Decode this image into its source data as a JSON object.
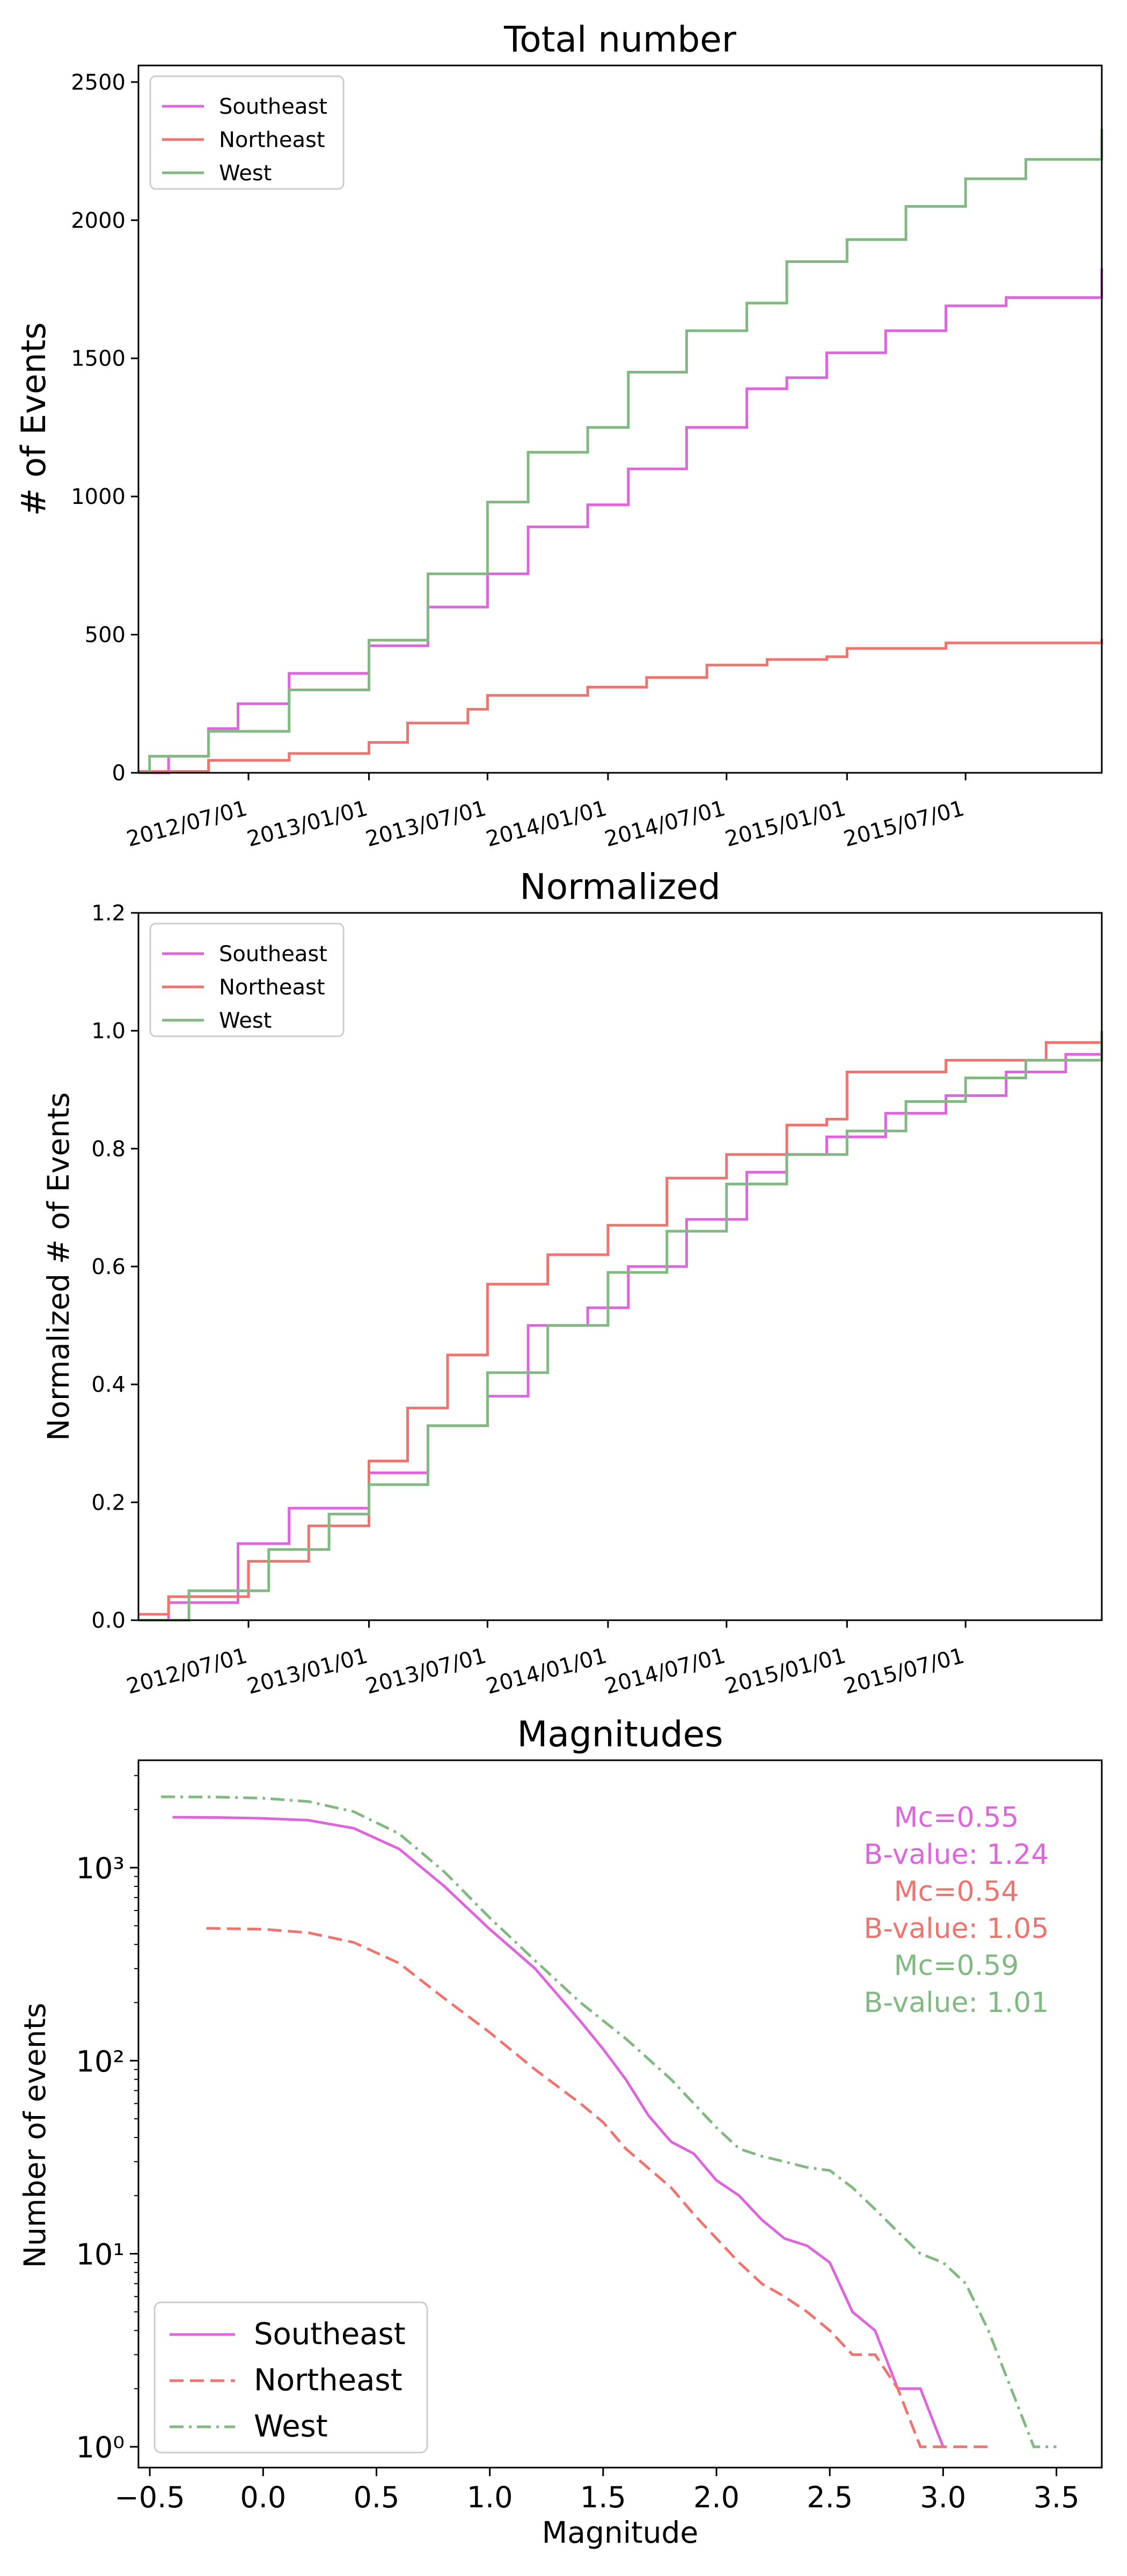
{
  "colors": {
    "Southeast": "#dd66dd",
    "Northeast": "#ee7470",
    "West": "#82b882"
  },
  "chart_data": [
    {
      "type": "line",
      "title": "Total number",
      "xlabel": "",
      "ylabel": "# of Events",
      "x_type": "date",
      "xlim": [
        "2012-01-15",
        "2016-01-25"
      ],
      "ylim": [
        0,
        2560
      ],
      "xticks": [
        "2012/07/01",
        "2013/01/01",
        "2013/07/01",
        "2014/01/01",
        "2014/07/01",
        "2015/01/01",
        "2015/07/01"
      ],
      "yticks": [
        0,
        500,
        1000,
        1500,
        2000,
        2500
      ],
      "legend": "top-left",
      "grid": false,
      "series": [
        {
          "name": "Southeast",
          "style": "step",
          "x": [
            "2012-01-15",
            "2012-03-01",
            "2012-05-01",
            "2012-06-15",
            "2012-09-01",
            "2013-01-01",
            "2013-04-01",
            "2013-07-01",
            "2013-09-01",
            "2013-12-01",
            "2014-02-01",
            "2014-05-01",
            "2014-08-01",
            "2014-10-01",
            "2014-12-01",
            "2015-03-01",
            "2015-06-01",
            "2015-09-01",
            "2016-01-25"
          ],
          "y": [
            0,
            60,
            160,
            250,
            360,
            460,
            600,
            720,
            890,
            970,
            1100,
            1250,
            1390,
            1430,
            1520,
            1600,
            1690,
            1720,
            1825
          ]
        },
        {
          "name": "Northeast",
          "style": "step",
          "x": [
            "2012-01-15",
            "2012-05-01",
            "2012-09-01",
            "2013-01-01",
            "2013-03-01",
            "2013-06-01",
            "2013-07-01",
            "2013-12-01",
            "2014-03-01",
            "2014-06-01",
            "2014-09-01",
            "2014-12-01",
            "2015-01-01",
            "2015-06-01",
            "2016-01-25"
          ],
          "y": [
            5,
            45,
            70,
            110,
            180,
            230,
            280,
            310,
            345,
            390,
            410,
            420,
            450,
            470,
            485
          ]
        },
        {
          "name": "West",
          "style": "step",
          "x": [
            "2012-01-15",
            "2012-02-01",
            "2012-05-01",
            "2012-09-01",
            "2013-01-01",
            "2013-04-01",
            "2013-07-01",
            "2013-09-01",
            "2013-12-01",
            "2014-02-01",
            "2014-05-01",
            "2014-08-01",
            "2014-10-01",
            "2015-01-01",
            "2015-04-01",
            "2015-07-01",
            "2015-10-01",
            "2016-01-25"
          ],
          "y": [
            0,
            60,
            150,
            300,
            480,
            720,
            980,
            1160,
            1250,
            1450,
            1600,
            1700,
            1850,
            1930,
            2050,
            2150,
            2220,
            2330
          ]
        }
      ]
    },
    {
      "type": "line",
      "title": "Normalized",
      "xlabel": "",
      "ylabel": "Normalized # of Events",
      "x_type": "date",
      "xlim": [
        "2012-01-15",
        "2016-01-25"
      ],
      "ylim": [
        0,
        1.2
      ],
      "xticks": [
        "2012/07/01",
        "2013/01/01",
        "2013/07/01",
        "2014/01/01",
        "2014/07/01",
        "2015/01/01",
        "2015/07/01"
      ],
      "yticks": [
        "0.0",
        "0.2",
        "0.4",
        "0.6",
        "0.8",
        "1.0",
        "1.2"
      ],
      "legend": "top-left",
      "grid": false,
      "series": [
        {
          "name": "Southeast",
          "style": "step",
          "x": [
            "2012-01-15",
            "2012-03-01",
            "2012-06-15",
            "2012-09-01",
            "2013-01-01",
            "2013-04-01",
            "2013-07-01",
            "2013-09-01",
            "2013-12-01",
            "2014-02-01",
            "2014-05-01",
            "2014-08-01",
            "2014-10-01",
            "2014-12-01",
            "2015-03-01",
            "2015-06-01",
            "2015-09-01",
            "2015-12-01",
            "2016-01-25"
          ],
          "y": [
            0,
            0.03,
            0.13,
            0.19,
            0.25,
            0.33,
            0.38,
            0.5,
            0.53,
            0.6,
            0.68,
            0.76,
            0.79,
            0.82,
            0.86,
            0.89,
            0.93,
            0.96,
            1.0
          ]
        },
        {
          "name": "Northeast",
          "style": "step",
          "x": [
            "2012-01-15",
            "2012-03-01",
            "2012-07-01",
            "2012-10-01",
            "2013-01-01",
            "2013-03-01",
            "2013-05-01",
            "2013-07-01",
            "2013-10-01",
            "2014-01-01",
            "2014-04-01",
            "2014-07-01",
            "2014-10-01",
            "2014-12-01",
            "2015-01-01",
            "2015-06-01",
            "2015-11-01",
            "2016-01-25"
          ],
          "y": [
            0.01,
            0.04,
            0.1,
            0.16,
            0.27,
            0.36,
            0.45,
            0.57,
            0.62,
            0.67,
            0.75,
            0.79,
            0.84,
            0.85,
            0.93,
            0.95,
            0.98,
            1.0
          ]
        },
        {
          "name": "West",
          "style": "step",
          "x": [
            "2012-01-15",
            "2012-04-01",
            "2012-08-01",
            "2012-11-01",
            "2013-01-01",
            "2013-04-01",
            "2013-07-01",
            "2013-10-01",
            "2014-01-01",
            "2014-04-01",
            "2014-07-01",
            "2014-10-01",
            "2015-01-01",
            "2015-04-01",
            "2015-07-01",
            "2015-10-01",
            "2016-01-25"
          ],
          "y": [
            0,
            0.05,
            0.12,
            0.18,
            0.23,
            0.33,
            0.42,
            0.5,
            0.59,
            0.66,
            0.74,
            0.79,
            0.83,
            0.88,
            0.92,
            0.95,
            1.0
          ]
        }
      ]
    },
    {
      "type": "line",
      "title": "Magnitudes",
      "xlabel": "Magnitude",
      "ylabel": "Number of events",
      "y_scale": "log",
      "xlim": [
        -0.55,
        3.7
      ],
      "ylim": [
        0.78,
        3600
      ],
      "xticks": [
        "−0.5",
        "0.0",
        "0.5",
        "1.0",
        "1.5",
        "2.0",
        "2.5",
        "3.0",
        "3.5"
      ],
      "yticks": [
        "10⁰",
        "10¹",
        "10²",
        "10³"
      ],
      "legend": "bottom-left",
      "grid": false,
      "annotations": [
        "Mc=0.55",
        "B-value: 1.24",
        "Mc=0.54",
        "B-value: 1.05",
        "Mc=0.59",
        "B-value: 1.01"
      ],
      "series": [
        {
          "name": "Southeast",
          "style": "solid",
          "x": [
            -0.4,
            -0.2,
            0,
            0.2,
            0.4,
            0.6,
            0.8,
            1.0,
            1.2,
            1.4,
            1.5,
            1.6,
            1.7,
            1.8,
            1.9,
            2.0,
            2.1,
            2.2,
            2.3,
            2.4,
            2.5,
            2.6,
            2.7,
            2.8,
            2.9,
            3.0
          ],
          "y": [
            1825,
            1820,
            1800,
            1760,
            1600,
            1250,
            800,
            480,
            300,
            160,
            115,
            80,
            52,
            38,
            33,
            24,
            20,
            15,
            12,
            11,
            9,
            5,
            4,
            2,
            2,
            1
          ]
        },
        {
          "name": "Northeast",
          "style": "dashed",
          "x": [
            -0.25,
            0,
            0.2,
            0.4,
            0.6,
            0.8,
            1.0,
            1.2,
            1.4,
            1.5,
            1.6,
            1.8,
            1.9,
            2.0,
            2.1,
            2.2,
            2.3,
            2.4,
            2.5,
            2.6,
            2.7,
            2.8,
            2.9,
            3.0,
            3.2
          ],
          "y": [
            485,
            480,
            460,
            410,
            320,
            210,
            140,
            90,
            60,
            48,
            35,
            22,
            16,
            12,
            9,
            7,
            6,
            5,
            4,
            3,
            3,
            2,
            1,
            1,
            1
          ]
        },
        {
          "name": "West",
          "style": "dashdot",
          "x": [
            -0.45,
            -0.2,
            0,
            0.2,
            0.4,
            0.6,
            0.8,
            1.0,
            1.2,
            1.4,
            1.6,
            1.8,
            2.0,
            2.1,
            2.2,
            2.3,
            2.4,
            2.5,
            2.6,
            2.7,
            2.8,
            2.9,
            3.0,
            3.1,
            3.2,
            3.3,
            3.4,
            3.5
          ],
          "y": [
            2330,
            2320,
            2290,
            2200,
            1950,
            1500,
            950,
            550,
            330,
            200,
            130,
            80,
            45,
            35,
            32,
            30,
            28,
            27,
            22,
            17,
            13,
            10,
            9,
            7,
            4,
            2,
            1,
            1
          ]
        }
      ]
    }
  ]
}
